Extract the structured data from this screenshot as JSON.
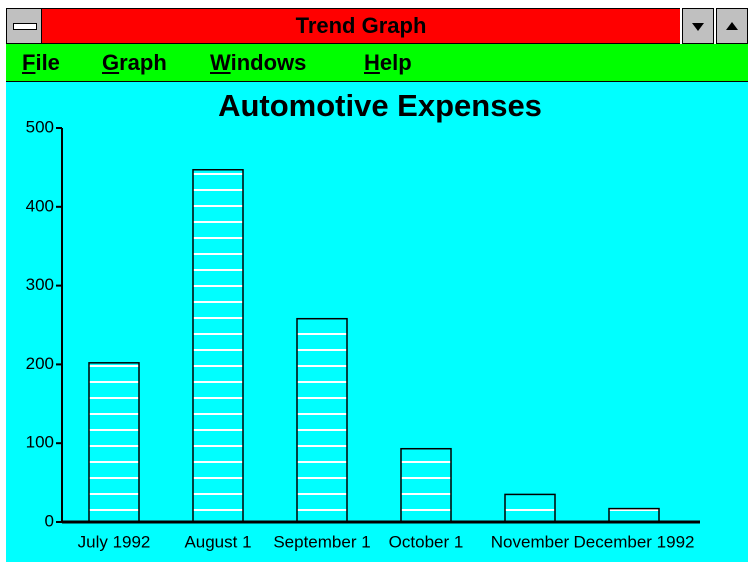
{
  "window": {
    "title": "Trend Graph",
    "menu": [
      "File",
      "Graph",
      "Windows",
      "Help"
    ]
  },
  "chart_data": {
    "type": "bar",
    "title": "Automotive Expenses",
    "categories": [
      "July 1992",
      "August 1",
      "September 1",
      "October 1",
      "November",
      "December 1992"
    ],
    "values": [
      202,
      447,
      258,
      93,
      35,
      17
    ],
    "color": "#ffffff",
    "ylim": [
      0,
      500
    ],
    "yticks": [
      0,
      100,
      200,
      300,
      400,
      500
    ]
  }
}
